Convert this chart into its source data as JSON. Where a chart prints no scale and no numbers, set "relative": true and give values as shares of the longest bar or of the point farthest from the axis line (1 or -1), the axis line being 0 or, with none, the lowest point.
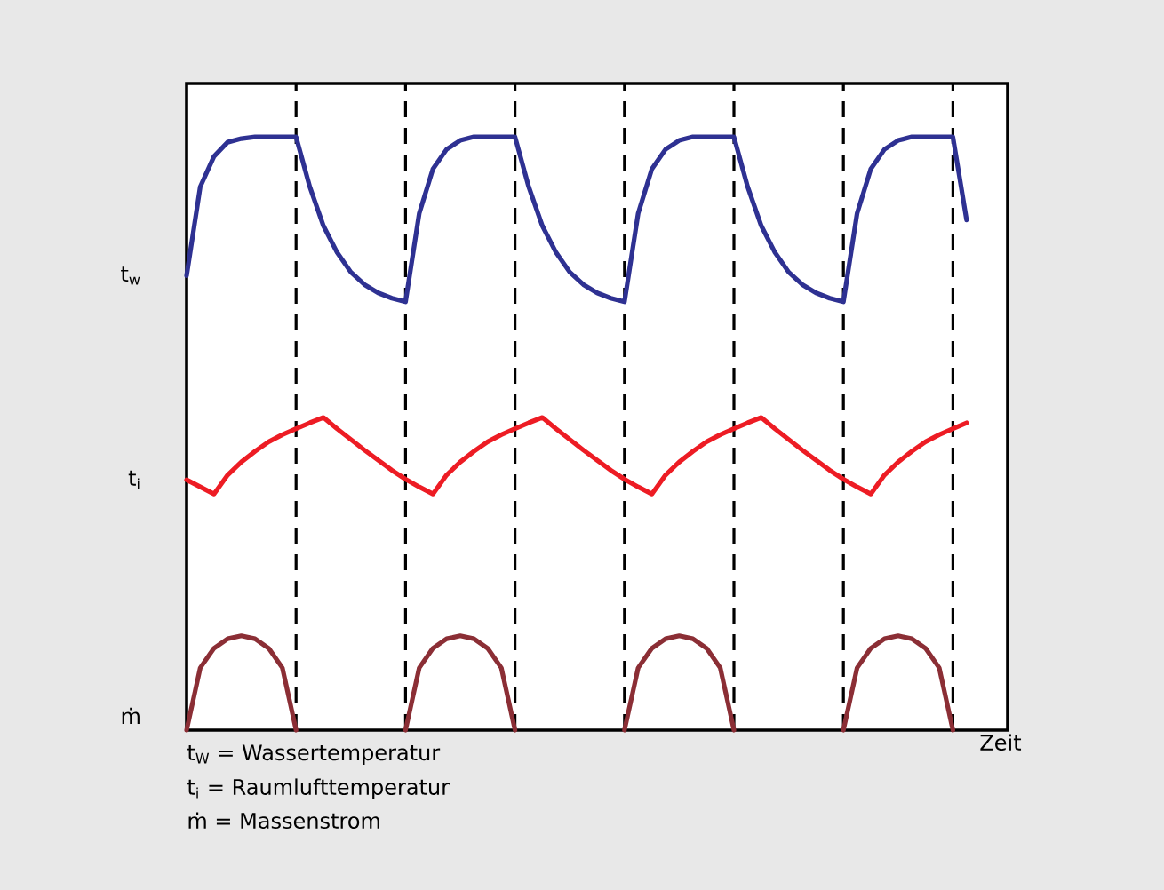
{
  "chart_data": {
    "type": "line",
    "relative": true,
    "xlabel": "Zeit",
    "categories": [
      null,
      null,
      null,
      null,
      null,
      null,
      null,
      null,
      null,
      null,
      null,
      null,
      null,
      null,
      null,
      null,
      null,
      null,
      null,
      null,
      null,
      null,
      null,
      null,
      null,
      null,
      null,
      null,
      null,
      null,
      null,
      null,
      null,
      null,
      null,
      null,
      null,
      null,
      null,
      null,
      null,
      null,
      null,
      null,
      null,
      null,
      null,
      null,
      null,
      null,
      null,
      null,
      null,
      null,
      null,
      null,
      null,
      null,
      null,
      null,
      null
    ],
    "series": [
      {
        "name": "t$_{w}$",
        "color": "#2e3192",
        "values": [
          0.766,
          0.916,
          0.967,
          0.991,
          0.997,
          1,
          1,
          1,
          1,
          0.916,
          0.85,
          0.805,
          0.772,
          0.751,
          0.737,
          0.728,
          0.722,
          0.871,
          0.946,
          0.979,
          0.994,
          1,
          1,
          1,
          1,
          0.916,
          0.85,
          0.805,
          0.772,
          0.751,
          0.737,
          0.728,
          0.722,
          0.871,
          0.946,
          0.979,
          0.994,
          1,
          1,
          1,
          1,
          0.916,
          0.85,
          0.805,
          0.772,
          0.751,
          0.737,
          0.728,
          0.722,
          0.871,
          0.946,
          0.979,
          0.994,
          1,
          1,
          1,
          1,
          0.86,
          null,
          null,
          null
        ]
      },
      {
        "name": "t$_{i}$",
        "color": "#ed1c24",
        "values": [
          0.422,
          0.41,
          0.398,
          0.43,
          0.452,
          0.47,
          0.486,
          0.498,
          0.508,
          0.518,
          0.527,
          0.508,
          0.49,
          0.472,
          0.455,
          0.438,
          0.423,
          0.41,
          0.398,
          0.43,
          0.452,
          0.47,
          0.486,
          0.498,
          0.508,
          0.518,
          0.527,
          0.508,
          0.49,
          0.472,
          0.455,
          0.438,
          0.423,
          0.41,
          0.398,
          0.43,
          0.452,
          0.47,
          0.486,
          0.498,
          0.508,
          0.518,
          0.527,
          0.508,
          0.49,
          0.472,
          0.455,
          0.438,
          0.423,
          0.41,
          0.398,
          0.43,
          0.452,
          0.47,
          0.486,
          0.498,
          0.508,
          0.518,
          null,
          null,
          null
        ]
      },
      {
        "name": "ṁ",
        "color": "#8b2e35",
        "values": [
          0,
          0.105,
          0.138,
          0.154,
          0.159,
          0.154,
          0.138,
          0.105,
          0,
          null,
          null,
          null,
          null,
          null,
          null,
          null,
          0,
          0.105,
          0.138,
          0.154,
          0.159,
          0.154,
          0.138,
          0.105,
          0,
          null,
          null,
          null,
          null,
          null,
          null,
          null,
          0,
          0.105,
          0.138,
          0.154,
          0.159,
          0.154,
          0.138,
          0.105,
          0,
          null,
          null,
          null,
          null,
          null,
          null,
          null,
          0,
          0.105,
          0.138,
          0.154,
          0.159,
          0.154,
          0.138,
          0.105,
          0,
          null,
          null,
          null,
          null
        ]
      }
    ],
    "grid": "x",
    "annotations": [
      "t$_{W}$ = Wassertemperatur",
      "t$_{i}$ = Raumlufttemperatur",
      "ṁ = Massenstrom"
    ]
  }
}
